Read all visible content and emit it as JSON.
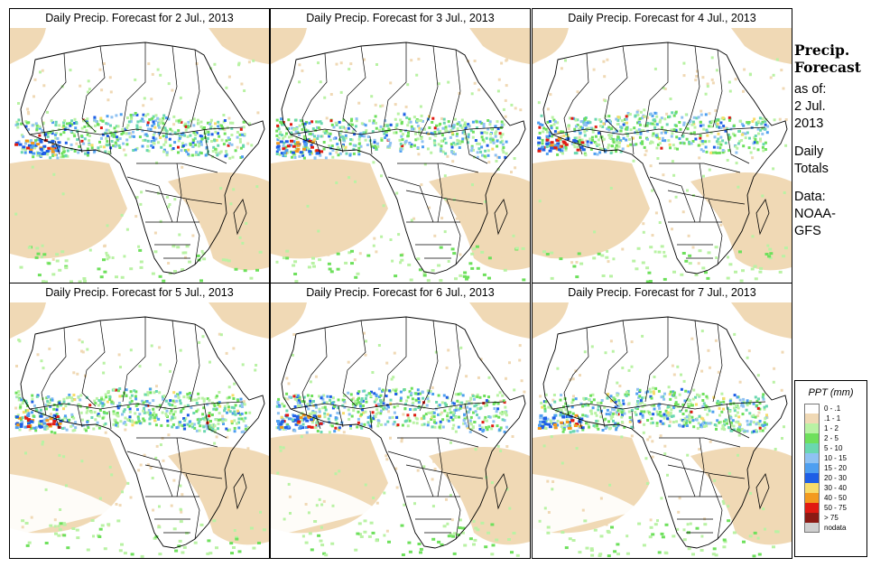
{
  "title_prefix": "Daily Precip. Forecast for",
  "panels": [
    {
      "day": "2 Jul., 2013",
      "title": "Daily Precip. Forecast for  2 Jul., 2013"
    },
    {
      "day": "3 Jul., 2013",
      "title": "Daily Precip. Forecast for  3 Jul., 2013"
    },
    {
      "day": "4 Jul., 2013",
      "title": "Daily Precip. Forecast for  4 Jul., 2013"
    },
    {
      "day": "5 Jul., 2013",
      "title": "Daily Precip. Forecast for  5 Jul., 2013"
    },
    {
      "day": "6 Jul., 2013",
      "title": "Daily Precip. Forecast for  6 Jul., 2013"
    },
    {
      "day": "7 Jul., 2013",
      "title": "Daily Precip. Forecast for  7 Jul., 2013"
    }
  ],
  "side_info": {
    "heading_line1": "Precip.",
    "heading_line2": "Forecast",
    "asof_line1": "as of:",
    "asof_line2": "2 Jul.",
    "asof_line3": "2013",
    "totals_line1": "Daily",
    "totals_line2": "Totals",
    "data_line1": "Data:",
    "data_line2": "NOAA-",
    "data_line3": "GFS"
  },
  "legend": {
    "title": "PPT (mm)",
    "items": [
      {
        "label": "0 - .1",
        "color": "#ffffff"
      },
      {
        "label": ".1 - 1",
        "color": "#f0d9b5"
      },
      {
        "label": "1 - 2",
        "color": "#b9f2a4"
      },
      {
        "label": "2 - 5",
        "color": "#6ee05c"
      },
      {
        "label": "5 - 10",
        "color": "#6ad7b0"
      },
      {
        "label": "10 - 15",
        "color": "#8fc2f2"
      },
      {
        "label": "15 - 20",
        "color": "#4e9ff0"
      },
      {
        "label": "20 - 30",
        "color": "#1e5ee6"
      },
      {
        "label": "30 - 40",
        "color": "#f7dc6a"
      },
      {
        "label": "40 - 50",
        "color": "#f39a1e"
      },
      {
        "label": "50 - 75",
        "color": "#e11a12"
      },
      {
        "label": "> 75",
        "color": "#8b1a14"
      },
      {
        "label": "nodata",
        "color": "#cfcfcf"
      }
    ]
  }
}
